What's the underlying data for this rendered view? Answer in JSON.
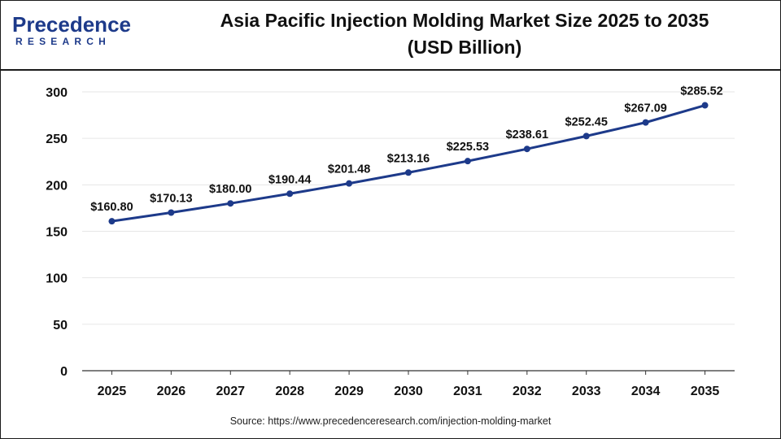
{
  "header": {
    "logo_main": "Precedence",
    "logo_sub": "RESEARCH",
    "title_line1": "Asia Pacific Injection Molding Market Size 2025 to 2035",
    "title_line2": "(USD Billion)"
  },
  "source": "Source: https://www.precedenceresearch.com/injection-molding-market",
  "colors": {
    "line": "#1d3a8a",
    "point": "#1d3a8a",
    "grid": "#e6e6e6",
    "axis": "#333333",
    "brand": "#1d3a8a"
  },
  "chart_data": {
    "type": "line",
    "title": "Asia Pacific Injection Molding Market Size 2025 to 2035 (USD Billion)",
    "categories": [
      "2025",
      "2026",
      "2027",
      "2028",
      "2029",
      "2030",
      "2031",
      "2032",
      "2033",
      "2034",
      "2035"
    ],
    "series": [
      {
        "values": [
          160.8,
          170.13,
          180.0,
          190.44,
          201.48,
          213.16,
          225.53,
          238.61,
          252.45,
          267.09,
          285.52
        ]
      }
    ],
    "data_labels": [
      "$160.80",
      "$170.13",
      "$180.00",
      "$190.44",
      "$201.48",
      "$213.16",
      "$225.53",
      "$238.61",
      "$252.45",
      "$267.09",
      "$285.52"
    ],
    "y_ticks": [
      "0",
      "50",
      "100",
      "150",
      "200",
      "250",
      "300"
    ],
    "ylim": [
      0,
      300
    ],
    "grid": true,
    "xlabel": "",
    "ylabel": ""
  }
}
